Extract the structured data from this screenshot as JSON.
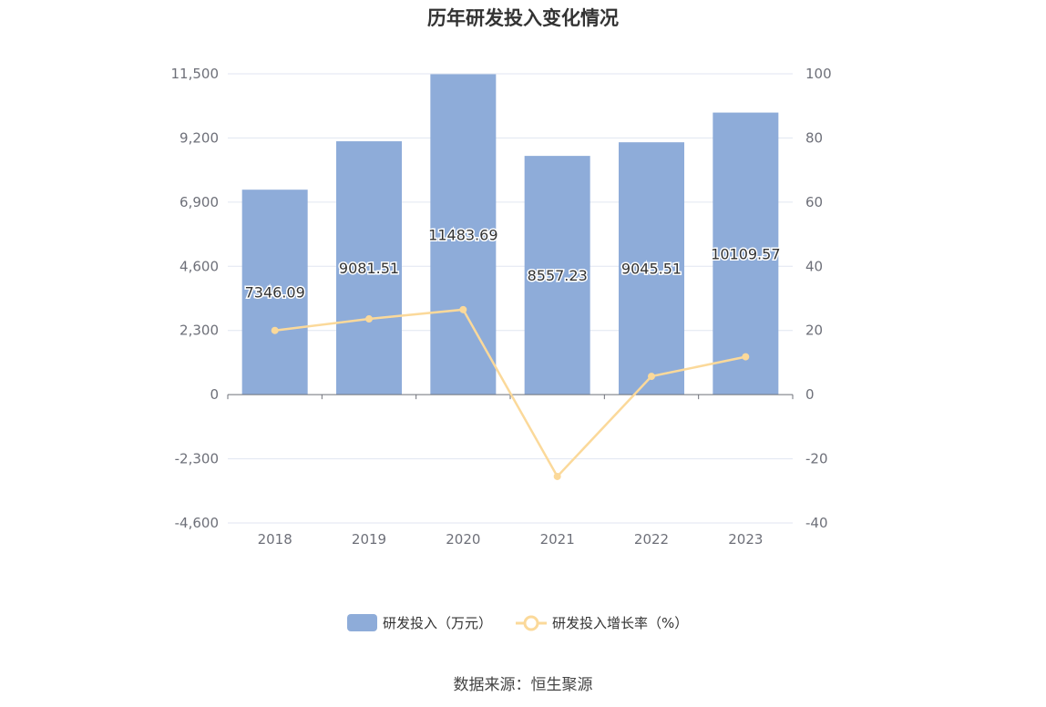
{
  "title": "历年研发投入变化情况",
  "source": "数据来源：恒生聚源",
  "chart_data": {
    "type": "bar",
    "title": "历年研发投入变化情况",
    "categories": [
      "2018",
      "2019",
      "2020",
      "2021",
      "2022",
      "2023"
    ],
    "series": [
      {
        "name": "研发投入（万元）",
        "type": "bar",
        "axis": "left",
        "color": "#8eacd9",
        "values": [
          7346.09,
          9081.51,
          11483.69,
          8557.23,
          9045.51,
          10109.57
        ],
        "labels": [
          "7346.09",
          "9081.51",
          "11483.69",
          "8557.23",
          "9045.51",
          "10109.57"
        ]
      },
      {
        "name": "研发投入增长率（%）",
        "type": "line",
        "axis": "right",
        "color": "#fbd99a",
        "values": [
          20.0,
          23.6,
          26.5,
          -25.5,
          5.7,
          11.8
        ]
      }
    ],
    "y_left": {
      "ylim": [
        -4600,
        11500
      ],
      "ticks": [
        -4600,
        -2300,
        0,
        2300,
        4600,
        6900,
        9200,
        11500
      ],
      "tick_labels": [
        "-4,600",
        "-2,300",
        "0",
        "2,300",
        "4,600",
        "6,900",
        "9,200",
        "11,500"
      ]
    },
    "y_right": {
      "ylim": [
        -40,
        100
      ],
      "ticks": [
        -40,
        -20,
        0,
        20,
        40,
        60,
        80,
        100
      ],
      "tick_labels": [
        "-40",
        "-20",
        "0",
        "20",
        "40",
        "60",
        "80",
        "100"
      ]
    },
    "grid": true,
    "legend": "bottom-center"
  }
}
